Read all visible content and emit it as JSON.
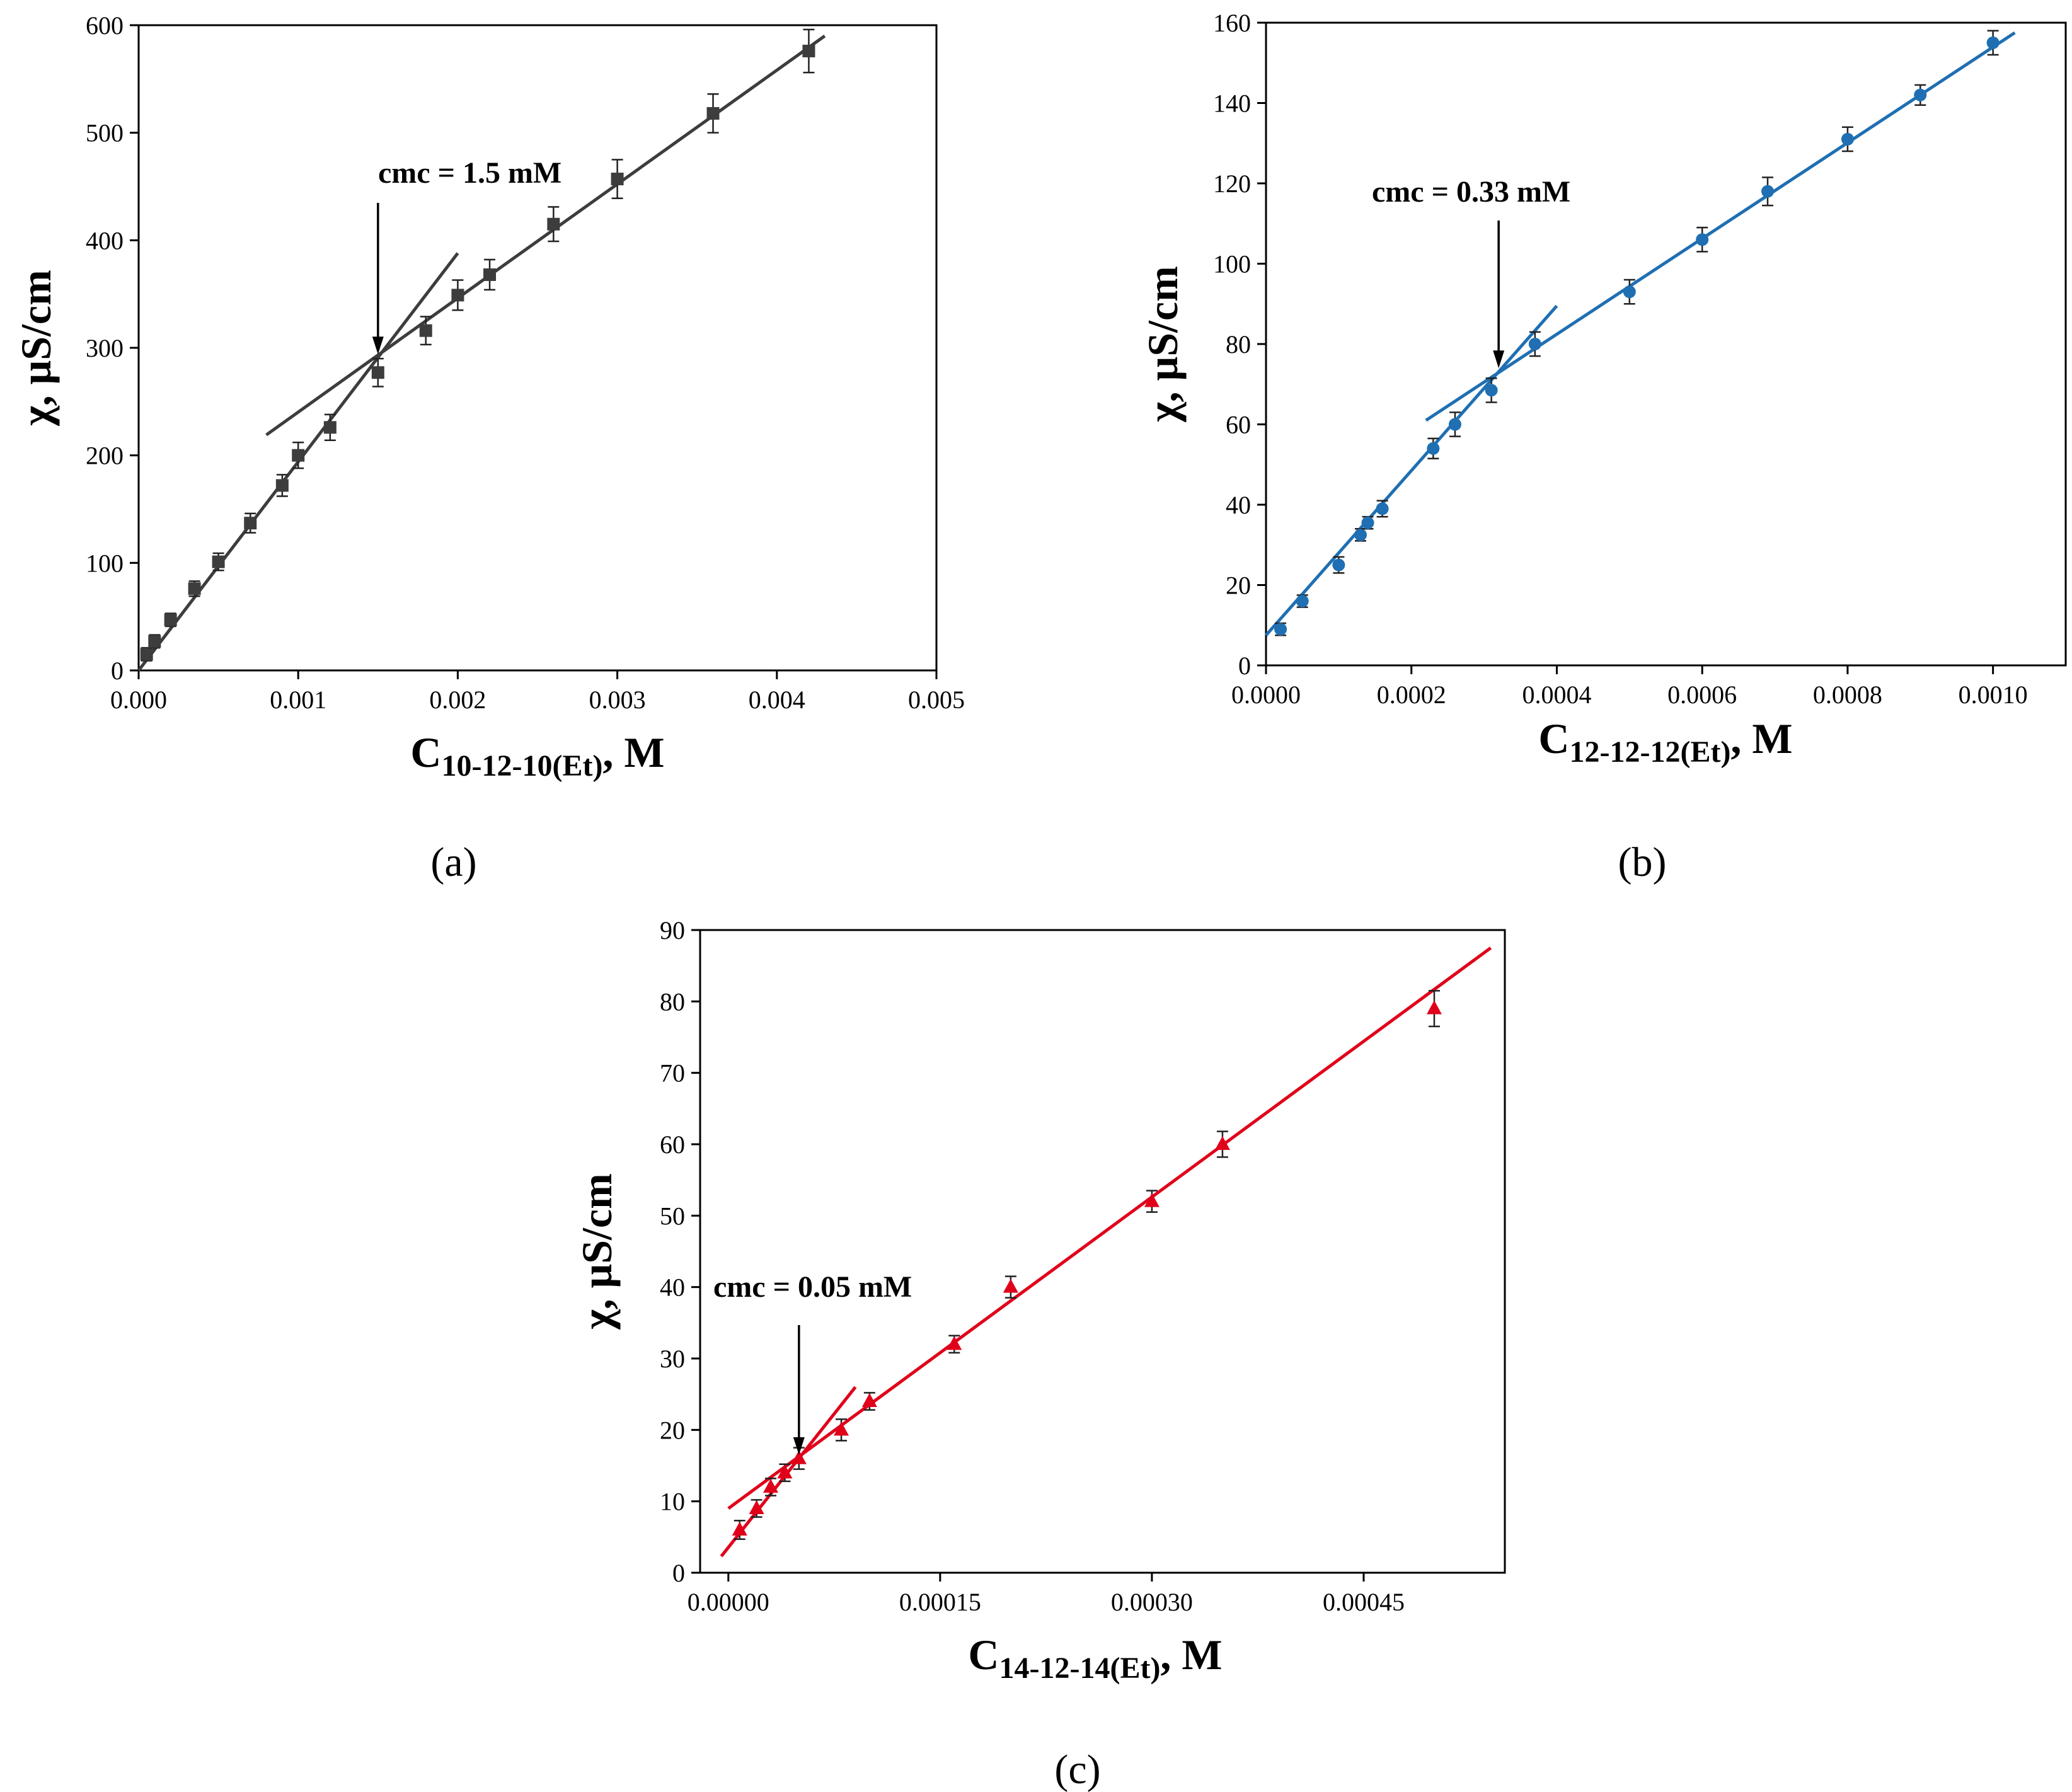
{
  "chart_data": [
    {
      "panel": "(a)",
      "type": "scatter",
      "color": "#3d3d3d",
      "marker": "square",
      "ylabel": "χ, μS/cm",
      "xlabel_main": "C",
      "xlabel_sub": "10-12-10(Et)",
      "xlabel_unit": ", M",
      "xlim": [
        0,
        0.005
      ],
      "ylim": [
        0,
        600
      ],
      "xticks": [
        0,
        0.001,
        0.002,
        0.003,
        0.004,
        0.005
      ],
      "xtick_labels": [
        "0.000",
        "0.001",
        "0.002",
        "0.003",
        "0.004",
        "0.005"
      ],
      "yticks": [
        0,
        100,
        200,
        300,
        400,
        500,
        600
      ],
      "ytick_labels": [
        "0",
        "100",
        "200",
        "300",
        "400",
        "500",
        "600"
      ],
      "points": [
        {
          "x": 5e-05,
          "y": 15,
          "err": 6
        },
        {
          "x": 0.0001,
          "y": 27,
          "err": 6
        },
        {
          "x": 0.0002,
          "y": 47,
          "err": 6
        },
        {
          "x": 0.00035,
          "y": 76,
          "err": 7
        },
        {
          "x": 0.0005,
          "y": 101,
          "err": 8
        },
        {
          "x": 0.0007,
          "y": 137,
          "err": 9
        },
        {
          "x": 0.0009,
          "y": 172,
          "err": 10
        },
        {
          "x": 0.001,
          "y": 200,
          "err": 12
        },
        {
          "x": 0.0012,
          "y": 226,
          "err": 12
        },
        {
          "x": 0.0015,
          "y": 277,
          "err": 13
        },
        {
          "x": 0.0018,
          "y": 316,
          "err": 13
        },
        {
          "x": 0.002,
          "y": 349,
          "err": 14
        },
        {
          "x": 0.0022,
          "y": 368,
          "err": 14
        },
        {
          "x": 0.0026,
          "y": 415,
          "err": 16
        },
        {
          "x": 0.003,
          "y": 457,
          "err": 18
        },
        {
          "x": 0.0036,
          "y": 518,
          "err": 18
        },
        {
          "x": 0.0042,
          "y": 576,
          "err": 20
        }
      ],
      "fit_lines": [
        {
          "x": [
            0,
            0.002
          ],
          "y": [
            0,
            388
          ]
        },
        {
          "x": [
            0.0008,
            0.0043
          ],
          "y": [
            219,
            590
          ]
        }
      ],
      "annotation": {
        "text": "cmc = 1.5 mM",
        "x": 0.0015,
        "y": 294
      }
    },
    {
      "panel": "(b)",
      "type": "scatter",
      "color": "#1f6fb2",
      "marker": "circle",
      "ylabel": "χ, μS/cm",
      "xlabel_main": "C",
      "xlabel_sub": "12-12-12(Et)",
      "xlabel_unit": ", M",
      "xlim": [
        0,
        0.0011
      ],
      "ylim": [
        0,
        160
      ],
      "xticks": [
        0,
        0.0002,
        0.0004,
        0.0006,
        0.0008,
        0.001
      ],
      "xtick_labels": [
        "0.0000",
        "0.0002",
        "0.0004",
        "0.0006",
        "0.0008",
        "0.0010"
      ],
      "yticks": [
        0,
        20,
        40,
        60,
        80,
        100,
        120,
        140,
        160
      ],
      "ytick_labels": [
        "0",
        "20",
        "40",
        "60",
        "80",
        "100",
        "120",
        "140",
        "160"
      ],
      "points": [
        {
          "x": 2e-05,
          "y": 9,
          "err": 1.5
        },
        {
          "x": 5e-05,
          "y": 16,
          "err": 1.5
        },
        {
          "x": 0.0001,
          "y": 25,
          "err": 2
        },
        {
          "x": 0.00013,
          "y": 32.5,
          "err": 1.5
        },
        {
          "x": 0.00014,
          "y": 35.5,
          "err": 1.5
        },
        {
          "x": 0.00016,
          "y": 39,
          "err": 2
        },
        {
          "x": 0.00023,
          "y": 54,
          "err": 2.5
        },
        {
          "x": 0.00026,
          "y": 60,
          "err": 3
        },
        {
          "x": 0.00031,
          "y": 68.5,
          "err": 3
        },
        {
          "x": 0.00037,
          "y": 80,
          "err": 3
        },
        {
          "x": 0.0005,
          "y": 93,
          "err": 3
        },
        {
          "x": 0.0006,
          "y": 106,
          "err": 3
        },
        {
          "x": 0.00069,
          "y": 118,
          "err": 3.5
        },
        {
          "x": 0.0008,
          "y": 131,
          "err": 3
        },
        {
          "x": 0.0009,
          "y": 142,
          "err": 2.5
        },
        {
          "x": 0.001,
          "y": 155,
          "err": 3
        }
      ],
      "fit_lines": [
        {
          "x": [
            0,
            0.0004
          ],
          "y": [
            7.5,
            89.5
          ]
        },
        {
          "x": [
            0.00022,
            0.00103
          ],
          "y": [
            61,
            157.5
          ]
        }
      ],
      "annotation": {
        "text": "cmc = 0.33 mM",
        "x": 0.00032,
        "y": 74
      }
    },
    {
      "panel": "(c)",
      "type": "scatter",
      "color": "#e0001a",
      "marker": "triangle",
      "ylabel": "χ, μS/cm",
      "xlabel_main": "C",
      "xlabel_sub": "14-12-14(Et)",
      "xlabel_unit": ", M",
      "xlim": [
        -2e-05,
        0.00055
      ],
      "ylim": [
        0,
        90
      ],
      "xticks": [
        0,
        0.00015,
        0.0003,
        0.00045
      ],
      "xtick_labels": [
        "0.00000",
        "0.00015",
        "0.00030",
        "0.00045"
      ],
      "yticks": [
        0,
        10,
        20,
        30,
        40,
        50,
        60,
        70,
        80,
        90
      ],
      "ytick_labels": [
        "0",
        "10",
        "20",
        "30",
        "40",
        "50",
        "60",
        "70",
        "80",
        "90"
      ],
      "points": [
        {
          "x": 8e-06,
          "y": 6,
          "err": 1.3
        },
        {
          "x": 2e-05,
          "y": 9,
          "err": 1.2
        },
        {
          "x": 3e-05,
          "y": 12,
          "err": 1.2
        },
        {
          "x": 4e-05,
          "y": 14,
          "err": 1.2
        },
        {
          "x": 5e-05,
          "y": 16,
          "err": 1.5
        },
        {
          "x": 8e-05,
          "y": 20,
          "err": 1.5
        },
        {
          "x": 0.0001,
          "y": 24,
          "err": 1.2
        },
        {
          "x": 0.00016,
          "y": 32,
          "err": 1.2
        },
        {
          "x": 0.0002,
          "y": 40,
          "err": 1.5
        },
        {
          "x": 0.0003,
          "y": 52,
          "err": 1.5
        },
        {
          "x": 0.00035,
          "y": 60,
          "err": 1.8
        },
        {
          "x": 0.0005,
          "y": 79,
          "err": 2.5
        }
      ],
      "fit_lines": [
        {
          "x": [
            -5e-06,
            9e-05
          ],
          "y": [
            2.3,
            26
          ]
        },
        {
          "x": [
            0,
            0.00054
          ],
          "y": [
            9,
            87.5
          ]
        }
      ],
      "annotation": {
        "text": "cmc = 0.05 mM",
        "x": 5e-05,
        "y": 16.5
      }
    }
  ]
}
